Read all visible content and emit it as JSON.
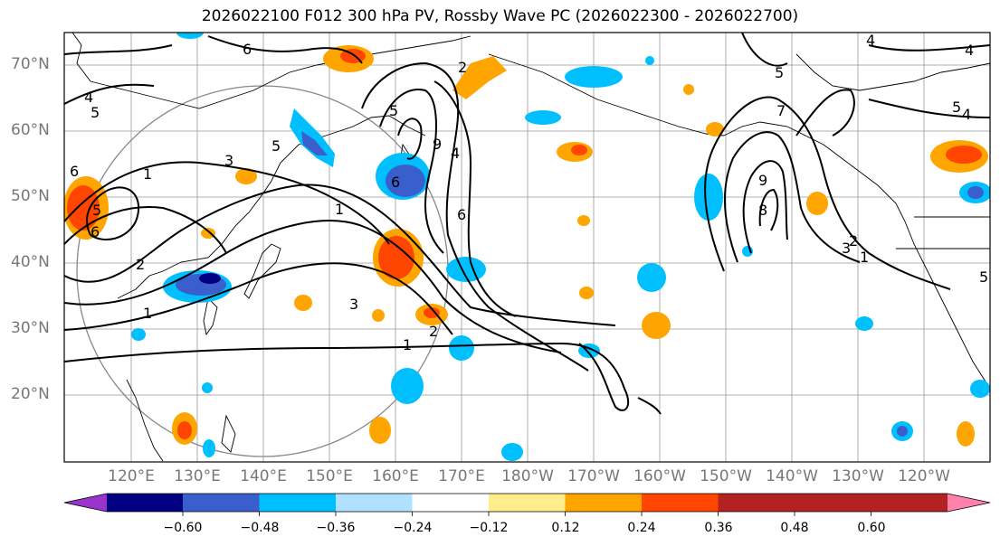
{
  "title": "2026022100 F012 300 hPa PV, Rossby Wave PC (2026022300 - 2026022700)",
  "lat_labels": [
    "70°N",
    "60°N",
    "50°N",
    "40°N",
    "30°N",
    "20°N"
  ],
  "lon_labels": [
    "120°E",
    "130°E",
    "140°E",
    "150°E",
    "160°E",
    "170°E",
    "180°W",
    "170°W",
    "160°W",
    "150°W",
    "140°W",
    "130°W",
    "120°W"
  ],
  "colorbar": {
    "colors": [
      "#9933cc",
      "#000080",
      "#3a5fcd",
      "#00bfff",
      "#b0e2ff",
      "#ffffff",
      "#ffec8b",
      "#ffa500",
      "#ff4500",
      "#b22222",
      "#ff82ab"
    ],
    "ticks": [
      "−0.60",
      "−0.48",
      "−0.36",
      "−0.24",
      "−0.12",
      "0.12",
      "0.24",
      "0.36",
      "0.48",
      "0.60"
    ]
  },
  "contour_labels": [
    "6",
    "5",
    "4",
    "5",
    "3",
    "1",
    "6",
    "5",
    "6",
    "2",
    "1",
    "1",
    "2",
    "3",
    "6",
    "4",
    "9",
    "6",
    "5",
    "9",
    "7",
    "8",
    "4",
    "5",
    "3",
    "2",
    "1",
    "4",
    "5",
    "5",
    "4",
    "1",
    "2"
  ]
}
